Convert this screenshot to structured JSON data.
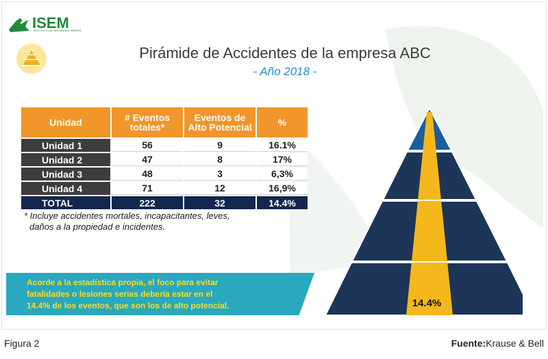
{
  "logo": {
    "text": "ISEM",
    "subtitle": "INSTITUTO DE SEGURIDAD MINERA"
  },
  "title": "Pirámide de Accidentes de la empresa ABC",
  "subtitle": "- Año 2018 -",
  "table": {
    "headers": [
      "Unidad",
      "# Eventos totales*",
      "Eventos de Alto Potencial",
      "%"
    ],
    "rows": [
      [
        "Unidad 1",
        "56",
        "9",
        "16.1%"
      ],
      [
        "Unidad 2",
        "47",
        "8",
        "17%"
      ],
      [
        "Unidad 3",
        "48",
        "3",
        "6,3%"
      ],
      [
        "Unidad 4",
        "71",
        "12",
        "16,9%"
      ]
    ],
    "total": [
      "TOTAL",
      "222",
      "32",
      "14.4%"
    ]
  },
  "footnote": {
    "line1": "* Incluye accidentes mortales, incapacitantes, leves,",
    "line2": "daños a la propiedad e incidentes."
  },
  "callout": {
    "line1": "Acorde a la estadística propia, el foco para evitar",
    "line2": "fatalidades o lesiones serias debería estar en el",
    "line3": "14.4% de los eventos, que son los de alto potencial."
  },
  "pyramid": {
    "label": "14.4%",
    "colors": {
      "top": "#1a5e9c",
      "layers": "#1c3558",
      "center": "#f4b81d"
    }
  },
  "footer": {
    "figure": "Figura 2",
    "source_label": "Fuente:",
    "source_value": "Krause & Bell"
  },
  "colors": {
    "header_orange": "#f0962a",
    "unit_dark": "#3d3d3d",
    "total_navy": "#13264d",
    "callout_teal": "#29a8be",
    "callout_text": "#ffdd1e",
    "subtitle_blue": "#1e8fc8",
    "logo_green": "#1f8a3a"
  }
}
